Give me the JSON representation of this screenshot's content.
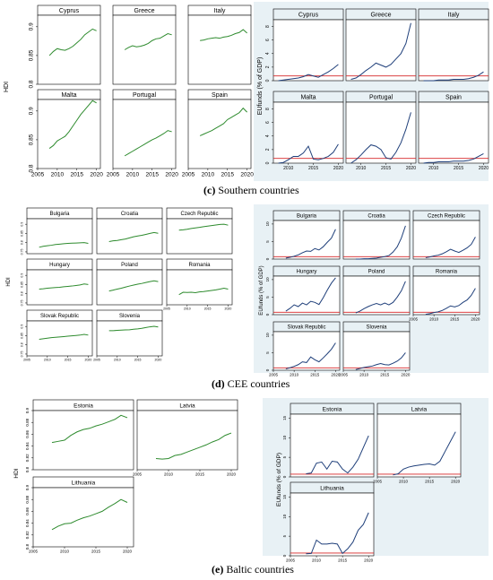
{
  "captions": {
    "c": {
      "letter": "(c)",
      "text": "Southern countries"
    },
    "d": {
      "letter": "(d)",
      "text": "CEE countries"
    },
    "e": {
      "letter": "(e)",
      "text": "Baltic countries"
    }
  },
  "colors": {
    "hdi_line": "#2e8b2e",
    "eu_line": "#1f3f7a",
    "ref_line": "#d62728",
    "frame": "#000000",
    "panel_bg": "#e8f1f5"
  },
  "chart_data": [
    {
      "type": "line",
      "group": "c",
      "measure": "hdi",
      "ylabel": "HDI",
      "ylim": [
        0.8,
        0.92
      ],
      "yticks": [
        0.8,
        0.85,
        0.9
      ],
      "xlim": [
        2005,
        2021
      ],
      "xticks": [
        2005,
        2010,
        2015,
        2020
      ],
      "x": [
        2008,
        2009,
        2010,
        2011,
        2012,
        2013,
        2014,
        2015,
        2016,
        2017,
        2018,
        2019,
        2020
      ],
      "series": [
        {
          "name": "Cyprus",
          "values": [
            0.85,
            0.857,
            0.862,
            0.86,
            0.859,
            0.862,
            0.866,
            0.872,
            0.878,
            0.886,
            0.891,
            0.896,
            0.893
          ]
        },
        {
          "name": "Greece",
          "values": [
            0.86,
            0.864,
            0.867,
            0.865,
            0.866,
            0.868,
            0.871,
            0.876,
            0.879,
            0.88,
            0.884,
            0.888,
            0.886
          ]
        },
        {
          "name": "Italy",
          "values": [
            0.876,
            0.877,
            0.879,
            0.88,
            0.881,
            0.88,
            0.882,
            0.883,
            0.885,
            0.888,
            0.89,
            0.895,
            0.889
          ]
        },
        {
          "name": "Malta",
          "values": [
            0.835,
            0.84,
            0.848,
            0.852,
            0.856,
            0.864,
            0.874,
            0.884,
            0.894,
            0.902,
            0.91,
            0.918,
            0.914
          ]
        },
        {
          "name": "Portugal",
          "values": [
            0.822,
            0.826,
            0.83,
            0.834,
            0.838,
            0.842,
            0.846,
            0.85,
            0.853,
            0.857,
            0.861,
            0.866,
            0.864
          ]
        },
        {
          "name": "Spain",
          "values": [
            0.857,
            0.86,
            0.863,
            0.866,
            0.87,
            0.874,
            0.878,
            0.885,
            0.889,
            0.893,
            0.897,
            0.905,
            0.898
          ]
        }
      ]
    },
    {
      "type": "line",
      "group": "c",
      "measure": "eufunds",
      "ylabel": "EUfunds (% of GDP)",
      "ylim": [
        0,
        9
      ],
      "yticks": [
        0,
        2,
        4,
        6,
        8
      ],
      "reference": 0.7,
      "xlim": [
        2007,
        2021
      ],
      "xticks": [
        2005,
        2010,
        2015,
        2020
      ],
      "x": [
        2008,
        2009,
        2010,
        2011,
        2012,
        2013,
        2014,
        2015,
        2016,
        2017,
        2018,
        2019,
        2020
      ],
      "series": [
        {
          "name": "Cyprus",
          "values": [
            0.0,
            0.1,
            0.2,
            0.3,
            0.4,
            0.6,
            0.9,
            0.7,
            0.5,
            0.9,
            1.3,
            1.8,
            2.4
          ]
        },
        {
          "name": "Greece",
          "values": [
            0.2,
            0.4,
            0.9,
            1.5,
            2.0,
            2.6,
            2.3,
            2.0,
            2.4,
            3.2,
            4.0,
            5.5,
            8.5
          ]
        },
        {
          "name": "Italy",
          "values": [
            0.0,
            0.0,
            0.0,
            0.1,
            0.1,
            0.1,
            0.2,
            0.2,
            0.2,
            0.3,
            0.5,
            0.8,
            1.3
          ]
        },
        {
          "name": "Malta",
          "values": [
            0.0,
            0.1,
            0.5,
            1.0,
            1.0,
            1.5,
            2.5,
            0.6,
            0.5,
            0.7,
            1.0,
            1.6,
            2.8
          ]
        },
        {
          "name": "Portugal",
          "values": [
            0.0,
            0.5,
            1.2,
            2.0,
            2.7,
            2.5,
            2.0,
            0.8,
            0.6,
            1.6,
            3.0,
            5.0,
            7.5
          ]
        },
        {
          "name": "Spain",
          "values": [
            0.0,
            0.1,
            0.1,
            0.2,
            0.2,
            0.2,
            0.3,
            0.3,
            0.3,
            0.4,
            0.6,
            1.0,
            1.4
          ]
        }
      ]
    },
    {
      "type": "line",
      "group": "d",
      "measure": "hdi",
      "ylabel": "HDI",
      "ylim": [
        0.74,
        0.93
      ],
      "yticks": [
        0.75,
        0.8,
        0.85,
        0.9
      ],
      "xlim": [
        2005,
        2021
      ],
      "xticks": [
        2005,
        2010,
        2015,
        2020
      ],
      "x": [
        2008,
        2009,
        2010,
        2011,
        2012,
        2013,
        2014,
        2015,
        2016,
        2017,
        2018,
        2019,
        2020
      ],
      "series": [
        {
          "name": "Bulgaria",
          "values": [
            0.775,
            0.78,
            0.783,
            0.786,
            0.79,
            0.792,
            0.794,
            0.796,
            0.797,
            0.798,
            0.799,
            0.8,
            0.796
          ]
        },
        {
          "name": "Croatia",
          "values": [
            0.806,
            0.81,
            0.812,
            0.816,
            0.82,
            0.826,
            0.832,
            0.836,
            0.84,
            0.845,
            0.85,
            0.855,
            0.851
          ]
        },
        {
          "name": "Czech Republic",
          "values": [
            0.868,
            0.87,
            0.873,
            0.877,
            0.88,
            0.883,
            0.887,
            0.89,
            0.893,
            0.896,
            0.899,
            0.9,
            0.895
          ]
        },
        {
          "name": "Hungary",
          "values": [
            0.825,
            0.827,
            0.83,
            0.832,
            0.834,
            0.835,
            0.838,
            0.84,
            0.842,
            0.845,
            0.848,
            0.853,
            0.85
          ]
        },
        {
          "name": "Poland",
          "values": [
            0.815,
            0.82,
            0.825,
            0.83,
            0.836,
            0.842,
            0.847,
            0.852,
            0.856,
            0.861,
            0.866,
            0.87,
            0.866
          ]
        },
        {
          "name": "Romania",
          "values": [
            0.795,
            0.808,
            0.807,
            0.808,
            0.806,
            0.81,
            0.812,
            0.815,
            0.818,
            0.821,
            0.825,
            0.83,
            0.825
          ]
        },
        {
          "name": "Slovak Republic",
          "values": [
            0.83,
            0.833,
            0.836,
            0.839,
            0.841,
            0.843,
            0.845,
            0.847,
            0.849,
            0.851,
            0.853,
            0.857,
            0.853
          ]
        },
        {
          "name": "Slovenia",
          "values": [
            0.877,
            0.877,
            0.879,
            0.88,
            0.881,
            0.882,
            0.885,
            0.887,
            0.89,
            0.894,
            0.898,
            0.901,
            0.897
          ]
        }
      ]
    },
    {
      "type": "line",
      "group": "d",
      "measure": "eufunds",
      "ylabel": "EUfunds (% of GDP)",
      "ylim": [
        0,
        11
      ],
      "yticks": [
        0,
        5,
        10
      ],
      "reference": 0.7,
      "xlim": [
        2005,
        2021
      ],
      "xticks": [
        2005,
        2010,
        2015,
        2020
      ],
      "x": [
        2008,
        2009,
        2010,
        2011,
        2012,
        2013,
        2014,
        2015,
        2016,
        2017,
        2018,
        2019,
        2020
      ],
      "series": [
        {
          "name": "Bulgaria",
          "values": [
            0.3,
            0.5,
            0.8,
            1.2,
            1.8,
            2.3,
            2.2,
            3.0,
            2.6,
            3.5,
            4.8,
            6.0,
            8.5
          ]
        },
        {
          "name": "Croatia",
          "values": [
            0.0,
            0.0,
            0.1,
            0.1,
            0.2,
            0.3,
            0.5,
            0.7,
            1.0,
            2.0,
            3.5,
            6.0,
            9.5
          ]
        },
        {
          "name": "Czech Republic",
          "values": [
            0.4,
            0.6,
            0.9,
            1.1,
            1.5,
            2.1,
            2.8,
            2.3,
            1.9,
            2.5,
            3.2,
            4.2,
            6.3
          ]
        },
        {
          "name": "Hungary",
          "values": [
            1.0,
            1.8,
            2.8,
            2.3,
            3.3,
            2.8,
            3.8,
            3.5,
            2.9,
            4.8,
            7.0,
            9.0,
            10.5
          ]
        },
        {
          "name": "Poland",
          "values": [
            0.5,
            1.0,
            1.7,
            2.3,
            2.8,
            3.2,
            2.8,
            3.3,
            2.8,
            3.5,
            5.0,
            6.8,
            9.5
          ]
        },
        {
          "name": "Romania",
          "values": [
            0.1,
            0.3,
            0.6,
            0.8,
            1.2,
            1.8,
            2.5,
            2.2,
            2.6,
            3.5,
            4.2,
            5.5,
            7.5
          ]
        },
        {
          "name": "Slovak Republic",
          "values": [
            0.4,
            0.7,
            1.1,
            1.6,
            2.4,
            2.2,
            3.8,
            3.0,
            2.4,
            3.5,
            4.7,
            6.0,
            7.8
          ]
        },
        {
          "name": "Slovenia",
          "values": [
            0.2,
            0.5,
            0.8,
            1.0,
            1.2,
            1.6,
            1.9,
            1.6,
            1.5,
            2.0,
            2.6,
            3.5,
            5.0
          ]
        }
      ]
    },
    {
      "type": "line",
      "group": "e",
      "measure": "hdi",
      "ylabel": "HDI",
      "ylim": [
        0.8,
        0.9
      ],
      "yticks": [
        0.8,
        0.82,
        0.84,
        0.86,
        0.88,
        0.9
      ],
      "xlim": [
        2005,
        2021
      ],
      "xticks": [
        2005,
        2010,
        2015,
        2020
      ],
      "x": [
        2008,
        2009,
        2010,
        2011,
        2012,
        2013,
        2014,
        2015,
        2016,
        2017,
        2018,
        2019,
        2020
      ],
      "series": [
        {
          "name": "Estonia",
          "values": [
            0.846,
            0.848,
            0.85,
            0.858,
            0.864,
            0.868,
            0.87,
            0.874,
            0.877,
            0.881,
            0.885,
            0.892,
            0.888
          ]
        },
        {
          "name": "Latvia",
          "values": [
            0.819,
            0.818,
            0.819,
            0.824,
            0.826,
            0.83,
            0.834,
            0.838,
            0.842,
            0.847,
            0.851,
            0.858,
            0.862
          ]
        },
        {
          "name": "Lithuania",
          "values": [
            0.829,
            0.835,
            0.839,
            0.84,
            0.845,
            0.849,
            0.852,
            0.856,
            0.86,
            0.867,
            0.873,
            0.88,
            0.875
          ]
        }
      ]
    },
    {
      "type": "line",
      "group": "e",
      "measure": "eufunds",
      "ylabel": "EUfunds (% of GDP)",
      "ylim": [
        0,
        16
      ],
      "yticks": [
        0,
        5,
        10,
        15
      ],
      "reference": 0.7,
      "xlim": [
        2005,
        2021
      ],
      "xticks": [
        2005,
        2010,
        2015,
        2020
      ],
      "x": [
        2008,
        2009,
        2010,
        2011,
        2012,
        2013,
        2014,
        2015,
        2016,
        2017,
        2018,
        2019,
        2020
      ],
      "series": [
        {
          "name": "Estonia",
          "values": [
            0.8,
            1.0,
            3.5,
            3.8,
            2.0,
            4.0,
            3.8,
            2.0,
            1.0,
            2.5,
            4.5,
            7.5,
            10.5
          ]
        },
        {
          "name": "Latvia",
          "values": [
            0.5,
            0.8,
            2.0,
            2.5,
            2.8,
            3.0,
            3.2,
            3.3,
            3.0,
            4.0,
            6.5,
            9.0,
            11.5
          ]
        },
        {
          "name": "Lithuania",
          "values": [
            0.5,
            0.6,
            4.0,
            3.0,
            3.0,
            3.2,
            3.0,
            0.6,
            1.8,
            3.5,
            6.5,
            8.0,
            11.0
          ]
        }
      ]
    }
  ]
}
